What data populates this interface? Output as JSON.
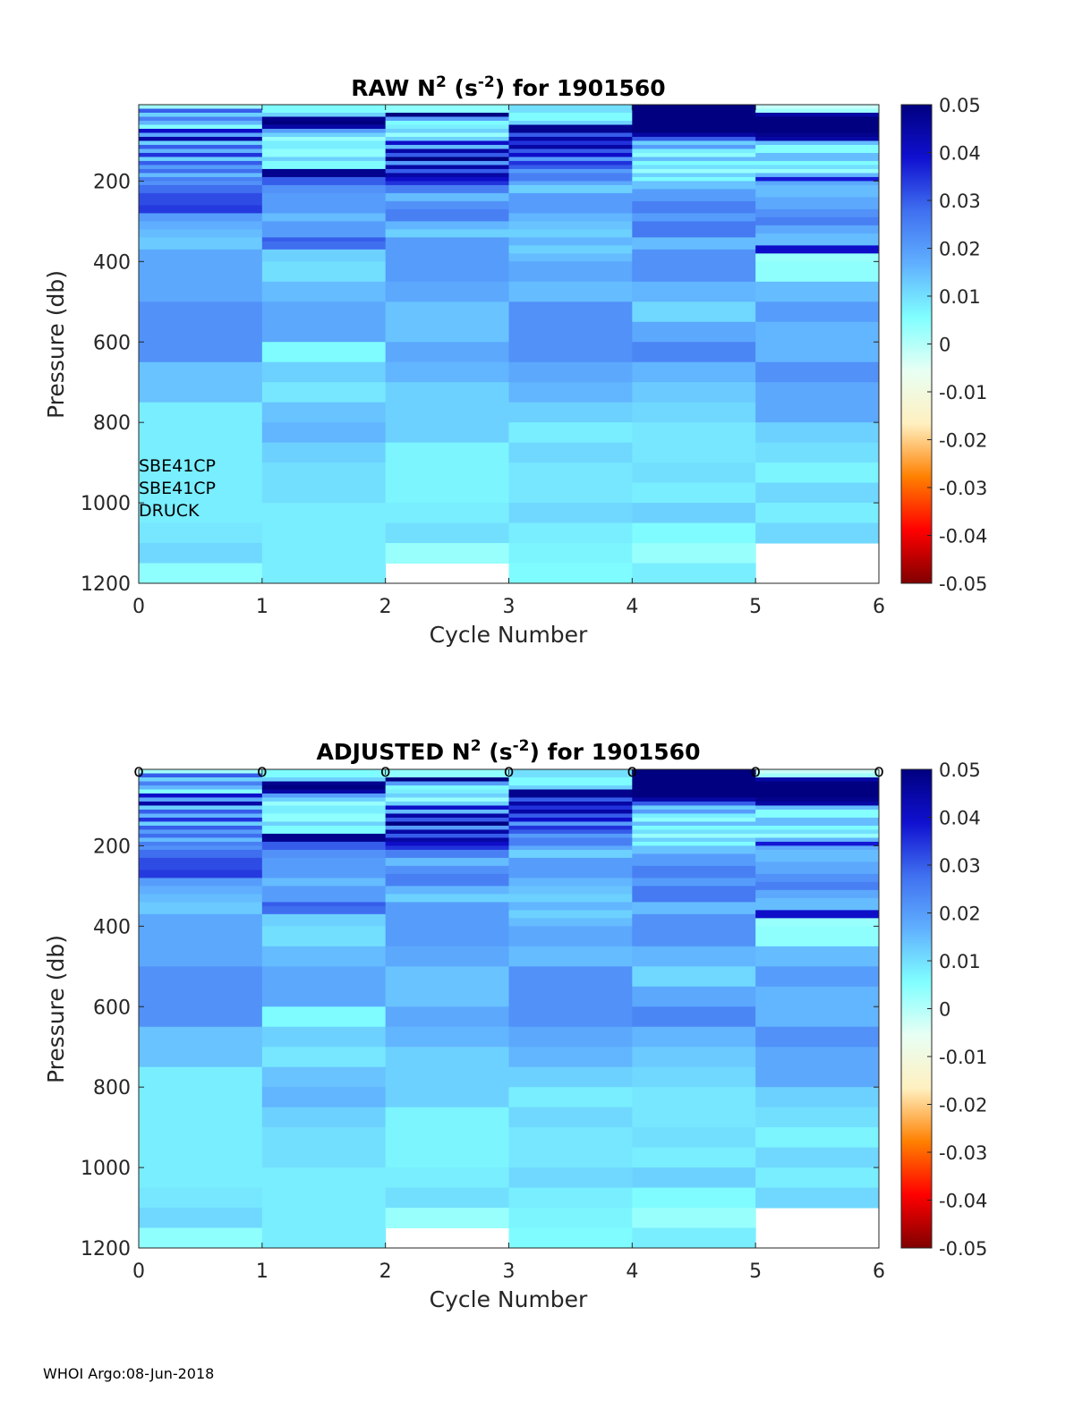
{
  "footer": "WHOI Argo:08-Jun-2018",
  "colorbar": {
    "ticks": [
      "0.05",
      "0.04",
      "0.03",
      "0.02",
      "0.01",
      "0",
      "-0.01",
      "-0.02",
      "-0.03",
      "-0.04",
      "-0.05"
    ],
    "range": [
      -0.05,
      0.05
    ],
    "colors": [
      "#800000",
      "#ff0000",
      "#ff8000",
      "#fff0c0",
      "#e8fff4",
      "#80ffff",
      "#60b0ff",
      "#4070f0",
      "#1010d0",
      "#000080"
    ]
  },
  "chart_data": [
    {
      "type": "heatmap",
      "title": "RAW N² (s⁻²) for 1901560",
      "title_parts": {
        "t1": "RAW N",
        "sup1": "2",
        "t2": " (s",
        "sup2": "-2",
        "t3": ") for 1901560"
      },
      "xlabel": "Cycle Number",
      "ylabel": "Pressure (db)",
      "xlim": [
        0,
        6
      ],
      "ylim": [
        10,
        1200
      ],
      "xticks": [
        "0",
        "1",
        "2",
        "3",
        "4",
        "5",
        "6"
      ],
      "yticks": [
        "200",
        "400",
        "600",
        "800",
        "1000",
        "1200"
      ],
      "annotations": [
        "SBE41CP",
        "SBE41CP",
        "DRUCK"
      ],
      "markers": []
    },
    {
      "type": "heatmap",
      "title": "ADJUSTED N² (s⁻²) for 1901560",
      "title_parts": {
        "t1": "ADJUSTED N",
        "sup1": "2",
        "t2": " (s",
        "sup2": "-2",
        "t3": ") for 1901560"
      },
      "xlabel": "Cycle Number",
      "ylabel": "Pressure (db)",
      "xlim": [
        0,
        6
      ],
      "ylim": [
        10,
        1200
      ],
      "xticks": [
        "0",
        "1",
        "2",
        "3",
        "4",
        "5",
        "6"
      ],
      "yticks": [
        "200",
        "400",
        "600",
        "800",
        "1000",
        "1200"
      ],
      "annotations": [],
      "markers": [
        "o",
        "o",
        "o",
        "o",
        "o",
        "o",
        "o"
      ]
    }
  ],
  "heatmap_columns": [
    {
      "cycle": 0,
      "rows": [
        [
          10,
          20,
          0.002
        ],
        [
          20,
          30,
          0.03
        ],
        [
          30,
          40,
          0.012
        ],
        [
          40,
          50,
          0.025
        ],
        [
          50,
          60,
          0.016
        ],
        [
          60,
          70,
          0.005
        ],
        [
          70,
          80,
          0.04
        ],
        [
          80,
          90,
          0.018
        ],
        [
          90,
          100,
          0.045
        ],
        [
          100,
          110,
          0.012
        ],
        [
          110,
          120,
          0.03
        ],
        [
          120,
          130,
          0.016
        ],
        [
          130,
          140,
          0.035
        ],
        [
          140,
          150,
          0.012
        ],
        [
          150,
          160,
          0.03
        ],
        [
          160,
          170,
          0.02
        ],
        [
          170,
          180,
          0.028
        ],
        [
          180,
          190,
          0.015
        ],
        [
          190,
          200,
          0.025
        ],
        [
          200,
          210,
          0.022
        ],
        [
          210,
          230,
          0.028
        ],
        [
          230,
          260,
          0.032
        ],
        [
          260,
          280,
          0.034
        ],
        [
          280,
          300,
          0.02
        ],
        [
          300,
          320,
          0.017
        ],
        [
          320,
          340,
          0.015
        ],
        [
          340,
          370,
          0.013
        ],
        [
          370,
          400,
          0.018
        ],
        [
          400,
          450,
          0.018
        ],
        [
          450,
          500,
          0.018
        ],
        [
          500,
          550,
          0.022
        ],
        [
          550,
          600,
          0.022
        ],
        [
          600,
          650,
          0.022
        ],
        [
          650,
          700,
          0.014
        ],
        [
          700,
          750,
          0.014
        ],
        [
          750,
          800,
          0.008
        ],
        [
          800,
          850,
          0.008
        ],
        [
          850,
          900,
          0.008
        ],
        [
          900,
          1000,
          0.008
        ],
        [
          1000,
          1050,
          0.008
        ],
        [
          1050,
          1100,
          0.009
        ],
        [
          1100,
          1150,
          0.011
        ],
        [
          1150,
          1200,
          0.004
        ]
      ]
    },
    {
      "cycle": 1,
      "rows": [
        [
          10,
          30,
          0.006
        ],
        [
          30,
          40,
          0.012
        ],
        [
          40,
          50,
          0.048
        ],
        [
          50,
          60,
          0.05
        ],
        [
          60,
          70,
          0.045
        ],
        [
          70,
          80,
          0.02
        ],
        [
          80,
          90,
          0.012
        ],
        [
          90,
          100,
          0.003
        ],
        [
          100,
          120,
          0.008
        ],
        [
          120,
          140,
          0.004
        ],
        [
          140,
          150,
          0.012
        ],
        [
          150,
          170,
          0.006
        ],
        [
          170,
          190,
          0.048
        ],
        [
          190,
          210,
          0.03
        ],
        [
          210,
          230,
          0.022
        ],
        [
          230,
          260,
          0.02
        ],
        [
          260,
          280,
          0.02
        ],
        [
          280,
          300,
          0.015
        ],
        [
          300,
          320,
          0.02
        ],
        [
          320,
          340,
          0.02
        ],
        [
          340,
          350,
          0.03
        ],
        [
          350,
          370,
          0.028
        ],
        [
          370,
          400,
          0.012
        ],
        [
          400,
          450,
          0.01
        ],
        [
          450,
          500,
          0.015
        ],
        [
          500,
          550,
          0.018
        ],
        [
          550,
          600,
          0.018
        ],
        [
          600,
          650,
          0.006
        ],
        [
          650,
          700,
          0.012
        ],
        [
          700,
          750,
          0.009
        ],
        [
          750,
          800,
          0.014
        ],
        [
          800,
          850,
          0.016
        ],
        [
          850,
          900,
          0.012
        ],
        [
          900,
          1000,
          0.01
        ],
        [
          1000,
          1100,
          0.008
        ],
        [
          1100,
          1200,
          0.008
        ]
      ]
    },
    {
      "cycle": 2,
      "rows": [
        [
          10,
          30,
          0.004
        ],
        [
          30,
          40,
          0.05
        ],
        [
          40,
          50,
          0.02
        ],
        [
          50,
          60,
          0.006
        ],
        [
          60,
          70,
          0.008
        ],
        [
          70,
          80,
          0.012
        ],
        [
          80,
          90,
          0.003
        ],
        [
          90,
          100,
          0.012
        ],
        [
          100,
          110,
          0.04
        ],
        [
          110,
          120,
          0.015
        ],
        [
          120,
          130,
          0.045
        ],
        [
          130,
          140,
          0.03
        ],
        [
          140,
          150,
          0.05
        ],
        [
          150,
          160,
          0.02
        ],
        [
          160,
          170,
          0.045
        ],
        [
          170,
          180,
          0.03
        ],
        [
          180,
          190,
          0.045
        ],
        [
          190,
          200,
          0.04
        ],
        [
          200,
          210,
          0.035
        ],
        [
          210,
          230,
          0.025
        ],
        [
          230,
          250,
          0.015
        ],
        [
          250,
          270,
          0.022
        ],
        [
          270,
          300,
          0.025
        ],
        [
          300,
          320,
          0.016
        ],
        [
          320,
          340,
          0.012
        ],
        [
          340,
          360,
          0.02
        ],
        [
          360,
          400,
          0.02
        ],
        [
          400,
          450,
          0.02
        ],
        [
          450,
          500,
          0.018
        ],
        [
          500,
          550,
          0.014
        ],
        [
          550,
          600,
          0.014
        ],
        [
          600,
          650,
          0.018
        ],
        [
          650,
          700,
          0.016
        ],
        [
          700,
          750,
          0.012
        ],
        [
          750,
          800,
          0.012
        ],
        [
          800,
          850,
          0.012
        ],
        [
          850,
          900,
          0.007
        ],
        [
          900,
          1000,
          0.007
        ],
        [
          1000,
          1050,
          0.008
        ],
        [
          1050,
          1100,
          0.01
        ],
        [
          1100,
          1150,
          0.003
        ]
      ]
    },
    {
      "cycle": 3,
      "rows": [
        [
          10,
          30,
          0.01
        ],
        [
          30,
          50,
          0.006
        ],
        [
          50,
          60,
          0.012
        ],
        [
          60,
          80,
          0.048
        ],
        [
          80,
          90,
          0.03
        ],
        [
          90,
          100,
          0.045
        ],
        [
          100,
          110,
          0.035
        ],
        [
          110,
          120,
          0.045
        ],
        [
          120,
          130,
          0.03
        ],
        [
          130,
          140,
          0.04
        ],
        [
          140,
          150,
          0.02
        ],
        [
          150,
          160,
          0.035
        ],
        [
          160,
          170,
          0.03
        ],
        [
          170,
          180,
          0.02
        ],
        [
          180,
          200,
          0.025
        ],
        [
          200,
          210,
          0.018
        ],
        [
          210,
          230,
          0.012
        ],
        [
          230,
          260,
          0.02
        ],
        [
          260,
          280,
          0.02
        ],
        [
          280,
          300,
          0.016
        ],
        [
          300,
          320,
          0.014
        ],
        [
          320,
          340,
          0.012
        ],
        [
          340,
          360,
          0.016
        ],
        [
          360,
          380,
          0.012
        ],
        [
          380,
          400,
          0.015
        ],
        [
          400,
          450,
          0.018
        ],
        [
          450,
          500,
          0.015
        ],
        [
          500,
          550,
          0.022
        ],
        [
          550,
          600,
          0.022
        ],
        [
          600,
          650,
          0.022
        ],
        [
          650,
          700,
          0.018
        ],
        [
          700,
          750,
          0.016
        ],
        [
          750,
          800,
          0.012
        ],
        [
          800,
          850,
          0.008
        ],
        [
          850,
          900,
          0.011
        ],
        [
          900,
          1000,
          0.009
        ],
        [
          1000,
          1050,
          0.011
        ],
        [
          1050,
          1100,
          0.008
        ],
        [
          1100,
          1150,
          0.007
        ],
        [
          1150,
          1200,
          0.006
        ]
      ]
    },
    {
      "cycle": 4,
      "rows": [
        [
          10,
          60,
          0.05
        ],
        [
          60,
          80,
          0.05
        ],
        [
          80,
          90,
          0.045
        ],
        [
          90,
          100,
          0.03
        ],
        [
          100,
          110,
          0.012
        ],
        [
          110,
          120,
          0.02
        ],
        [
          120,
          130,
          0.008
        ],
        [
          130,
          140,
          0.004
        ],
        [
          140,
          150,
          0.015
        ],
        [
          150,
          160,
          0.006
        ],
        [
          160,
          170,
          0.01
        ],
        [
          170,
          180,
          0.003
        ],
        [
          180,
          190,
          0.012
        ],
        [
          190,
          200,
          0.006
        ],
        [
          200,
          220,
          0.014
        ],
        [
          220,
          250,
          0.02
        ],
        [
          250,
          280,
          0.025
        ],
        [
          280,
          300,
          0.02
        ],
        [
          300,
          340,
          0.026
        ],
        [
          340,
          370,
          0.015
        ],
        [
          370,
          400,
          0.022
        ],
        [
          400,
          450,
          0.022
        ],
        [
          450,
          500,
          0.016
        ],
        [
          500,
          550,
          0.011
        ],
        [
          550,
          600,
          0.018
        ],
        [
          600,
          650,
          0.024
        ],
        [
          650,
          700,
          0.016
        ],
        [
          700,
          750,
          0.013
        ],
        [
          750,
          800,
          0.011
        ],
        [
          800,
          850,
          0.009
        ],
        [
          850,
          900,
          0.009
        ],
        [
          900,
          950,
          0.01
        ],
        [
          950,
          1000,
          0.008
        ],
        [
          1000,
          1050,
          0.012
        ],
        [
          1050,
          1100,
          0.006
        ],
        [
          1100,
          1150,
          0.003
        ],
        [
          1150,
          1200,
          0.008
        ]
      ]
    },
    {
      "cycle": 5,
      "rows": [
        [
          10,
          20,
          -0.002
        ],
        [
          20,
          30,
          0.002
        ],
        [
          30,
          40,
          0.045
        ],
        [
          40,
          80,
          0.05
        ],
        [
          80,
          90,
          0.048
        ],
        [
          90,
          100,
          0.045
        ],
        [
          100,
          110,
          0.015
        ],
        [
          110,
          130,
          0.005
        ],
        [
          130,
          150,
          0.015
        ],
        [
          150,
          160,
          0.006
        ],
        [
          160,
          170,
          0.01
        ],
        [
          170,
          180,
          0.003
        ],
        [
          180,
          190,
          0.016
        ],
        [
          190,
          200,
          0.038
        ],
        [
          200,
          210,
          0.018
        ],
        [
          210,
          240,
          0.015
        ],
        [
          240,
          270,
          0.018
        ],
        [
          270,
          290,
          0.022
        ],
        [
          290,
          310,
          0.025
        ],
        [
          310,
          330,
          0.018
        ],
        [
          330,
          360,
          0.015
        ],
        [
          360,
          380,
          0.04
        ],
        [
          380,
          400,
          0.003
        ],
        [
          400,
          450,
          0.004
        ],
        [
          450,
          500,
          0.015
        ],
        [
          500,
          550,
          0.02
        ],
        [
          550,
          600,
          0.016
        ],
        [
          600,
          650,
          0.016
        ],
        [
          650,
          700,
          0.022
        ],
        [
          700,
          750,
          0.018
        ],
        [
          750,
          800,
          0.018
        ],
        [
          800,
          850,
          0.012
        ],
        [
          850,
          900,
          0.01
        ],
        [
          900,
          950,
          0.007
        ],
        [
          950,
          1000,
          0.011
        ],
        [
          1000,
          1050,
          0.008
        ],
        [
          1050,
          1100,
          0.011
        ]
      ]
    }
  ]
}
